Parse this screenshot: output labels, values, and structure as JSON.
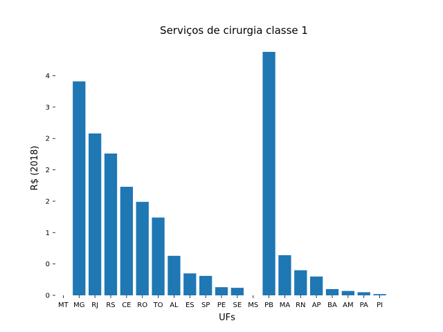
{
  "chart_data": {
    "type": "bar",
    "title": "Serviços de cirurgia classe 1",
    "xlabel": "UFs",
    "ylabel": "R$ (2018)",
    "categories": [
      "MT",
      "MG",
      "RJ",
      "RS",
      "CE",
      "RO",
      "TO",
      "AL",
      "ES",
      "SP",
      "PE",
      "SE",
      "MS",
      "PB",
      "MA",
      "RN",
      "AP",
      "BA",
      "AM",
      "PA",
      "PI"
    ],
    "values": [
      0,
      3.41,
      2.58,
      2.26,
      1.73,
      1.49,
      1.24,
      0.63,
      0.35,
      0.31,
      0.13,
      0.12,
      0,
      3.88,
      0.64,
      0.4,
      0.3,
      0.1,
      0.07,
      0.05,
      0.02
    ],
    "yticks": [
      0,
      0.5,
      1.0,
      1.5,
      2.0,
      2.5,
      3.0,
      3.5
    ],
    "ytick_labels": [
      "0",
      "0",
      "1",
      "2",
      "2",
      "2",
      "3",
      "4"
    ],
    "ylim": [
      0,
      3.88
    ],
    "grid": false,
    "color": "#1f77b4"
  }
}
